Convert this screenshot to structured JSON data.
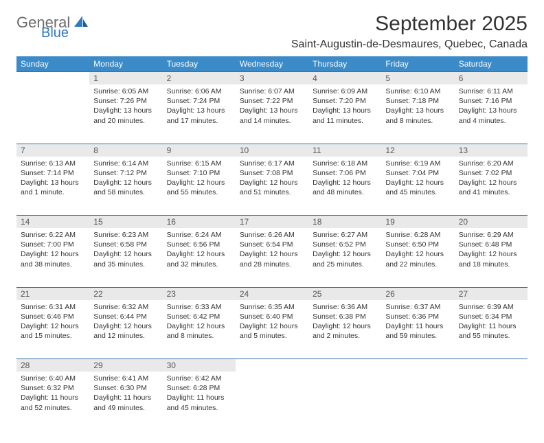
{
  "brand": {
    "general": "General",
    "blue": "Blue"
  },
  "title": "September 2025",
  "location": "Saint-Augustin-de-Desmaures, Quebec, Canada",
  "colors": {
    "header_bg": "#3b8bc8",
    "header_text": "#ffffff",
    "daynum_bg": "#e9e9e9",
    "rule": "#2f6fa3",
    "logo_blue": "#2f7bbf",
    "logo_gray": "#6b6b6b"
  },
  "weekdays": [
    "Sunday",
    "Monday",
    "Tuesday",
    "Wednesday",
    "Thursday",
    "Friday",
    "Saturday"
  ],
  "weeks": [
    {
      "nums": [
        "",
        "1",
        "2",
        "3",
        "4",
        "5",
        "6"
      ],
      "cells": [
        {},
        {
          "sunrise": "Sunrise: 6:05 AM",
          "sunset": "Sunset: 7:26 PM",
          "day1": "Daylight: 13 hours",
          "day2": "and 20 minutes."
        },
        {
          "sunrise": "Sunrise: 6:06 AM",
          "sunset": "Sunset: 7:24 PM",
          "day1": "Daylight: 13 hours",
          "day2": "and 17 minutes."
        },
        {
          "sunrise": "Sunrise: 6:07 AM",
          "sunset": "Sunset: 7:22 PM",
          "day1": "Daylight: 13 hours",
          "day2": "and 14 minutes."
        },
        {
          "sunrise": "Sunrise: 6:09 AM",
          "sunset": "Sunset: 7:20 PM",
          "day1": "Daylight: 13 hours",
          "day2": "and 11 minutes."
        },
        {
          "sunrise": "Sunrise: 6:10 AM",
          "sunset": "Sunset: 7:18 PM",
          "day1": "Daylight: 13 hours",
          "day2": "and 8 minutes."
        },
        {
          "sunrise": "Sunrise: 6:11 AM",
          "sunset": "Sunset: 7:16 PM",
          "day1": "Daylight: 13 hours",
          "day2": "and 4 minutes."
        }
      ]
    },
    {
      "nums": [
        "7",
        "8",
        "9",
        "10",
        "11",
        "12",
        "13"
      ],
      "cells": [
        {
          "sunrise": "Sunrise: 6:13 AM",
          "sunset": "Sunset: 7:14 PM",
          "day1": "Daylight: 13 hours",
          "day2": "and 1 minute."
        },
        {
          "sunrise": "Sunrise: 6:14 AM",
          "sunset": "Sunset: 7:12 PM",
          "day1": "Daylight: 12 hours",
          "day2": "and 58 minutes."
        },
        {
          "sunrise": "Sunrise: 6:15 AM",
          "sunset": "Sunset: 7:10 PM",
          "day1": "Daylight: 12 hours",
          "day2": "and 55 minutes."
        },
        {
          "sunrise": "Sunrise: 6:17 AM",
          "sunset": "Sunset: 7:08 PM",
          "day1": "Daylight: 12 hours",
          "day2": "and 51 minutes."
        },
        {
          "sunrise": "Sunrise: 6:18 AM",
          "sunset": "Sunset: 7:06 PM",
          "day1": "Daylight: 12 hours",
          "day2": "and 48 minutes."
        },
        {
          "sunrise": "Sunrise: 6:19 AM",
          "sunset": "Sunset: 7:04 PM",
          "day1": "Daylight: 12 hours",
          "day2": "and 45 minutes."
        },
        {
          "sunrise": "Sunrise: 6:20 AM",
          "sunset": "Sunset: 7:02 PM",
          "day1": "Daylight: 12 hours",
          "day2": "and 41 minutes."
        }
      ]
    },
    {
      "nums": [
        "14",
        "15",
        "16",
        "17",
        "18",
        "19",
        "20"
      ],
      "cells": [
        {
          "sunrise": "Sunrise: 6:22 AM",
          "sunset": "Sunset: 7:00 PM",
          "day1": "Daylight: 12 hours",
          "day2": "and 38 minutes."
        },
        {
          "sunrise": "Sunrise: 6:23 AM",
          "sunset": "Sunset: 6:58 PM",
          "day1": "Daylight: 12 hours",
          "day2": "and 35 minutes."
        },
        {
          "sunrise": "Sunrise: 6:24 AM",
          "sunset": "Sunset: 6:56 PM",
          "day1": "Daylight: 12 hours",
          "day2": "and 32 minutes."
        },
        {
          "sunrise": "Sunrise: 6:26 AM",
          "sunset": "Sunset: 6:54 PM",
          "day1": "Daylight: 12 hours",
          "day2": "and 28 minutes."
        },
        {
          "sunrise": "Sunrise: 6:27 AM",
          "sunset": "Sunset: 6:52 PM",
          "day1": "Daylight: 12 hours",
          "day2": "and 25 minutes."
        },
        {
          "sunrise": "Sunrise: 6:28 AM",
          "sunset": "Sunset: 6:50 PM",
          "day1": "Daylight: 12 hours",
          "day2": "and 22 minutes."
        },
        {
          "sunrise": "Sunrise: 6:29 AM",
          "sunset": "Sunset: 6:48 PM",
          "day1": "Daylight: 12 hours",
          "day2": "and 18 minutes."
        }
      ]
    },
    {
      "nums": [
        "21",
        "22",
        "23",
        "24",
        "25",
        "26",
        "27"
      ],
      "cells": [
        {
          "sunrise": "Sunrise: 6:31 AM",
          "sunset": "Sunset: 6:46 PM",
          "day1": "Daylight: 12 hours",
          "day2": "and 15 minutes."
        },
        {
          "sunrise": "Sunrise: 6:32 AM",
          "sunset": "Sunset: 6:44 PM",
          "day1": "Daylight: 12 hours",
          "day2": "and 12 minutes."
        },
        {
          "sunrise": "Sunrise: 6:33 AM",
          "sunset": "Sunset: 6:42 PM",
          "day1": "Daylight: 12 hours",
          "day2": "and 8 minutes."
        },
        {
          "sunrise": "Sunrise: 6:35 AM",
          "sunset": "Sunset: 6:40 PM",
          "day1": "Daylight: 12 hours",
          "day2": "and 5 minutes."
        },
        {
          "sunrise": "Sunrise: 6:36 AM",
          "sunset": "Sunset: 6:38 PM",
          "day1": "Daylight: 12 hours",
          "day2": "and 2 minutes."
        },
        {
          "sunrise": "Sunrise: 6:37 AM",
          "sunset": "Sunset: 6:36 PM",
          "day1": "Daylight: 11 hours",
          "day2": "and 59 minutes."
        },
        {
          "sunrise": "Sunrise: 6:39 AM",
          "sunset": "Sunset: 6:34 PM",
          "day1": "Daylight: 11 hours",
          "day2": "and 55 minutes."
        }
      ]
    },
    {
      "nums": [
        "28",
        "29",
        "30",
        "",
        "",
        "",
        ""
      ],
      "cells": [
        {
          "sunrise": "Sunrise: 6:40 AM",
          "sunset": "Sunset: 6:32 PM",
          "day1": "Daylight: 11 hours",
          "day2": "and 52 minutes."
        },
        {
          "sunrise": "Sunrise: 6:41 AM",
          "sunset": "Sunset: 6:30 PM",
          "day1": "Daylight: 11 hours",
          "day2": "and 49 minutes."
        },
        {
          "sunrise": "Sunrise: 6:42 AM",
          "sunset": "Sunset: 6:28 PM",
          "day1": "Daylight: 11 hours",
          "day2": "and 45 minutes."
        },
        {},
        {},
        {},
        {}
      ]
    }
  ]
}
